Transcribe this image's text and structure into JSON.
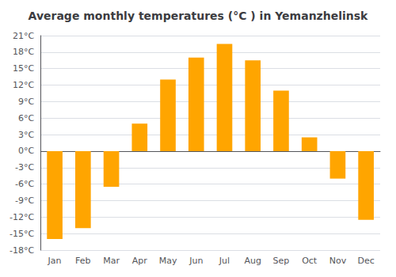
{
  "chart_data": {
    "type": "bar",
    "title": "Average monthly temperatures (°C ) in Yemanzhelinsk",
    "categories": [
      "Jan",
      "Feb",
      "Mar",
      "Apr",
      "May",
      "Jun",
      "Jul",
      "Aug",
      "Sep",
      "Oct",
      "Nov",
      "Dec"
    ],
    "values": [
      -16,
      -14,
      -6.5,
      5,
      13,
      17,
      19.5,
      16.5,
      11,
      2.5,
      -5,
      -12.5
    ],
    "color": "#FFA500",
    "ylim": [
      -18,
      21
    ],
    "yticks": [
      {
        "value": -18,
        "label": "-18°C"
      },
      {
        "value": -15,
        "label": "-15°C"
      },
      {
        "value": -12,
        "label": "-12°C"
      },
      {
        "value": -9,
        "label": "-9°C"
      },
      {
        "value": -6,
        "label": "-6°C"
      },
      {
        "value": -3,
        "label": "-3°C"
      },
      {
        "value": 0,
        "label": "0°C"
      },
      {
        "value": 3,
        "label": "3°C"
      },
      {
        "value": 6,
        "label": "6°C"
      },
      {
        "value": 9,
        "label": "9°C"
      },
      {
        "value": 12,
        "label": "12°C"
      },
      {
        "value": 15,
        "label": "15°C"
      },
      {
        "value": 18,
        "label": "18°C"
      },
      {
        "value": 21,
        "label": "21°C"
      }
    ],
    "grid": true
  }
}
